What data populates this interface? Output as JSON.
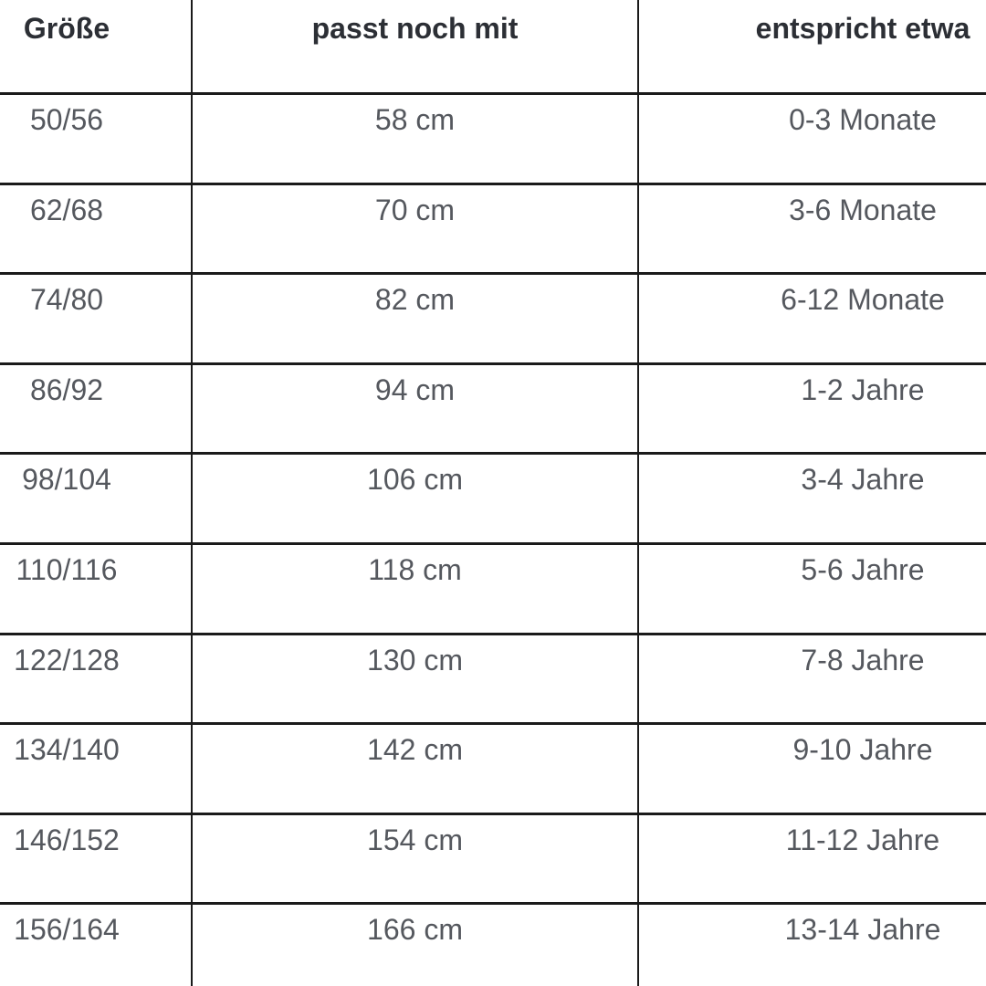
{
  "table": {
    "headers": [
      "Größe",
      "passt noch mit",
      "entspricht etwa"
    ],
    "rows": [
      [
        "50/56",
        "58 cm",
        "0-3 Monate"
      ],
      [
        "62/68",
        "70 cm",
        "3-6 Monate"
      ],
      [
        "74/80",
        "82 cm",
        "6-12 Monate"
      ],
      [
        "86/92",
        "94 cm",
        "1-2 Jahre"
      ],
      [
        "98/104",
        "106 cm",
        "3-4 Jahre"
      ],
      [
        "110/116",
        "118 cm",
        "5-6 Jahre"
      ],
      [
        "122/128",
        "130 cm",
        "7-8 Jahre"
      ],
      [
        "134/140",
        "142 cm",
        "9-10 Jahre"
      ],
      [
        "146/152",
        "154 cm",
        "11-12 Jahre"
      ],
      [
        "156/164",
        "166 cm",
        "13-14 Jahre"
      ]
    ]
  },
  "colors": {
    "border": "#1a1a1a",
    "header_text": "#2c2f35",
    "body_text": "#55585e",
    "background": "#ffffff"
  }
}
